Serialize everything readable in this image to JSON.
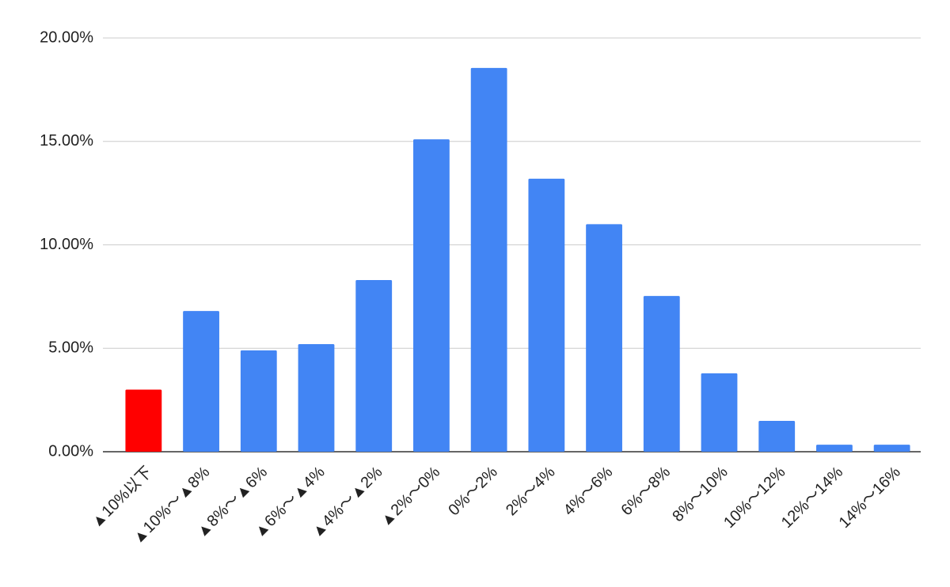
{
  "chart_data": {
    "type": "bar",
    "categories": [
      "▲10%以下",
      "▲10%〜▲8%",
      "▲8%〜▲6%",
      "▲6%〜▲4%",
      "▲4%〜▲2%",
      "▲2%〜0%",
      "0%〜2%",
      "2%〜4%",
      "4%〜6%",
      "6%〜8%",
      "8%〜10%",
      "10%〜12%",
      "12%〜14%",
      "14%〜16%"
    ],
    "values": [
      3.0,
      6.8,
      4.9,
      5.2,
      8.3,
      15.1,
      18.55,
      13.2,
      11.0,
      7.53,
      3.79,
      1.49,
      0.34,
      0.34
    ],
    "colors": [
      "#ff0000",
      "#4285f4",
      "#4285f4",
      "#4285f4",
      "#4285f4",
      "#4285f4",
      "#4285f4",
      "#4285f4",
      "#4285f4",
      "#4285f4",
      "#4285f4",
      "#4285f4",
      "#4285f4",
      "#4285f4"
    ],
    "ylim": [
      0,
      20
    ],
    "yticks": [
      {
        "value": 0,
        "label": "0.00%"
      },
      {
        "value": 5,
        "label": "5.00%"
      },
      {
        "value": 10,
        "label": "10.00%"
      },
      {
        "value": 15,
        "label": "15.00%"
      },
      {
        "value": 20,
        "label": "20.00%"
      }
    ],
    "grid": true
  }
}
